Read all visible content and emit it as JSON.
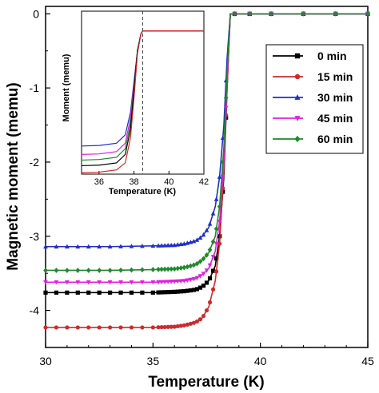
{
  "chart_data": [
    {
      "type": "line",
      "title": "",
      "xlabel": "Temperature (K)",
      "ylabel": "Magnetic moment (memu)",
      "xlim": [
        30,
        45
      ],
      "ylim": [
        -4.5,
        0.1
      ],
      "xticks": [
        "30",
        "35",
        "40",
        "45"
      ],
      "yticks": [
        "0",
        "-1",
        "-2",
        "-3",
        "-4"
      ],
      "grid": false,
      "legend_position": "top-right",
      "series": [
        {
          "name": "0 min",
          "color": "#000000",
          "marker": "square",
          "x": [
            30,
            33,
            35,
            36,
            36.5,
            37,
            37.3,
            37.6,
            37.9,
            38.1,
            38.3,
            38.45,
            38.6,
            45
          ],
          "y": [
            -3.76,
            -3.76,
            -3.76,
            -3.75,
            -3.74,
            -3.72,
            -3.68,
            -3.6,
            -3.4,
            -3.0,
            -2.2,
            -1.0,
            0,
            0
          ]
        },
        {
          "name": "15 min",
          "color": "#d02a2a",
          "marker": "circle",
          "x": [
            30,
            33,
            35,
            36,
            36.5,
            37,
            37.3,
            37.6,
            37.9,
            38.1,
            38.3,
            38.45,
            38.6,
            45
          ],
          "y": [
            -4.23,
            -4.23,
            -4.23,
            -4.22,
            -4.2,
            -4.16,
            -4.1,
            -3.95,
            -3.6,
            -3.1,
            -2.1,
            -1.0,
            0,
            0
          ]
        },
        {
          "name": "30 min",
          "color": "#1f2fc8",
          "marker": "triangle",
          "x": [
            30,
            33,
            35,
            36,
            36.5,
            37,
            37.3,
            37.6,
            37.9,
            38.1,
            38.3,
            38.45,
            38.6,
            45
          ],
          "y": [
            -3.14,
            -3.14,
            -3.13,
            -3.12,
            -3.1,
            -3.06,
            -3.0,
            -2.88,
            -2.6,
            -2.2,
            -1.5,
            -0.6,
            0,
            0
          ]
        },
        {
          "name": "45 min",
          "color": "#e020e0",
          "marker": "triangle-down",
          "x": [
            30,
            33,
            35,
            36,
            36.5,
            37,
            37.3,
            37.6,
            37.9,
            38.1,
            38.3,
            38.45,
            38.6,
            45
          ],
          "y": [
            -3.62,
            -3.62,
            -3.62,
            -3.61,
            -3.6,
            -3.57,
            -3.52,
            -3.43,
            -3.2,
            -2.8,
            -2.0,
            -0.9,
            0,
            0
          ]
        },
        {
          "name": "60 min",
          "color": "#1e8a2a",
          "marker": "diamond",
          "x": [
            30,
            33,
            35,
            36,
            36.5,
            37,
            37.3,
            37.6,
            37.9,
            38.1,
            38.3,
            38.45,
            38.6,
            45
          ],
          "y": [
            -3.46,
            -3.46,
            -3.45,
            -3.44,
            -3.42,
            -3.38,
            -3.32,
            -3.22,
            -3.0,
            -2.6,
            -1.8,
            -0.8,
            0,
            0
          ]
        }
      ]
    },
    {
      "type": "line",
      "title": "",
      "xlabel": "Temperature (K)",
      "ylabel": "Moment (memu)",
      "xlim": [
        35,
        42
      ],
      "ylim": [
        -5.3,
        0.5
      ],
      "xticks": [
        "36",
        "38",
        "40",
        "42"
      ],
      "reference_line_x": 38.5,
      "reference_line_style": "dashed",
      "grid": false,
      "series": [
        {
          "color": "#1f2fc8",
          "x": [
            35,
            36,
            37,
            37.5,
            37.8,
            38.0,
            38.2,
            38.4,
            38.5,
            42
          ],
          "y": [
            -4.3,
            -4.28,
            -4.2,
            -3.9,
            -3.1,
            -2.0,
            -0.9,
            -0.3,
            -0.2,
            -0.2
          ]
        },
        {
          "color": "#e020e0",
          "x": [
            35,
            36,
            37,
            37.5,
            37.8,
            38.0,
            38.2,
            38.4,
            38.5,
            42
          ],
          "y": [
            -4.6,
            -4.58,
            -4.5,
            -4.2,
            -3.3,
            -2.1,
            -0.9,
            -0.3,
            -0.2,
            -0.2
          ]
        },
        {
          "color": "#1e8a2a",
          "x": [
            35,
            36,
            37,
            37.5,
            37.8,
            38.0,
            38.2,
            38.4,
            38.5,
            42
          ],
          "y": [
            -4.8,
            -4.78,
            -4.7,
            -4.4,
            -3.5,
            -2.2,
            -0.9,
            -0.3,
            -0.2,
            -0.2
          ]
        },
        {
          "color": "#000000",
          "x": [
            35,
            36,
            37,
            37.5,
            37.8,
            38.0,
            38.2,
            38.4,
            38.5,
            42
          ],
          "y": [
            -5.0,
            -4.98,
            -4.9,
            -4.6,
            -3.7,
            -2.3,
            -0.9,
            -0.3,
            -0.2,
            -0.2
          ]
        },
        {
          "color": "#d02a2a",
          "x": [
            35,
            36,
            37,
            37.5,
            37.8,
            38.0,
            38.2,
            38.4,
            38.5,
            42
          ],
          "y": [
            -5.25,
            -5.23,
            -5.15,
            -4.9,
            -4.0,
            -2.6,
            -1.0,
            -0.3,
            -0.2,
            -0.2
          ]
        }
      ]
    }
  ]
}
